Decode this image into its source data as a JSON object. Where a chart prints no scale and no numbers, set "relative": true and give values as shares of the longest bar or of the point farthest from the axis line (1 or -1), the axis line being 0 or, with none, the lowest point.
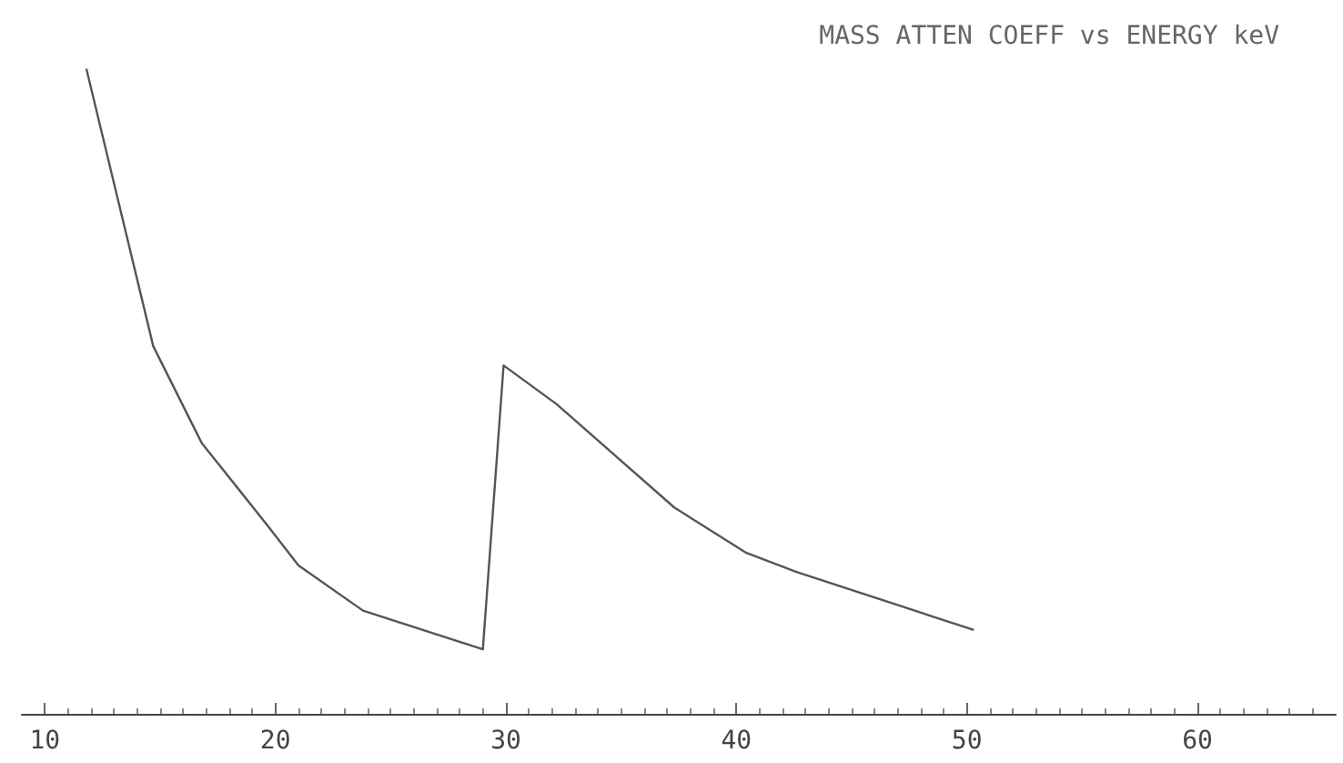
{
  "chart_data": {
    "type": "line",
    "title": "MASS ATTEN COEFF vs ENERGY keV",
    "relative": true,
    "series": [
      {
        "color": "#555555",
        "x": [
          11.8,
          14.7,
          16.8,
          19.7,
          21,
          23.8,
          29,
          29.9,
          32.2,
          37.3,
          40.4,
          42.6,
          50.3
        ],
        "values": [
          1,
          0.57,
          0.42,
          0.29,
          0.23,
          0.16,
          0.1,
          0.54,
          0.48,
          0.32,
          0.25,
          0.22,
          0.13
        ]
      }
    ],
    "xlim": [
      9,
      66
    ],
    "xticks": [
      10,
      20,
      30,
      40,
      50,
      60
    ],
    "grid": false,
    "marker": "none",
    "line_style": "solid"
  }
}
